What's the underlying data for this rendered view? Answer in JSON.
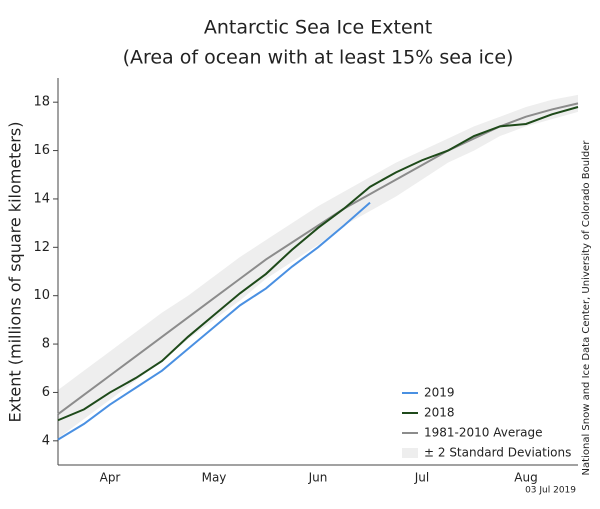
{
  "chart_data": {
    "type": "line",
    "title": "Antarctic Sea Ice Extent",
    "subtitle": "(Area of ocean with at least 15% sea ice)",
    "y_label": "Extent (millions of square kilometers)",
    "source": "National Snow and Ice Data Center, University of Colorado Boulder",
    "date": "03 Jul 2019",
    "categories": [
      null,
      null,
      "Apr",
      null,
      null,
      null,
      "May",
      null,
      null,
      null,
      "Jun",
      null,
      null,
      null,
      "Jul",
      null,
      null,
      null,
      "Aug",
      null,
      null
    ],
    "ylim": [
      3,
      19
    ],
    "yticks": [
      4,
      6,
      8,
      10,
      12,
      14,
      16,
      18
    ],
    "legend": "lower right",
    "series": [
      {
        "name": "2019",
        "color": "#4a90e2",
        "values": [
          4.05,
          4.7,
          5.5,
          6.2,
          6.9,
          7.8,
          8.7,
          9.6,
          10.3,
          11.2,
          12.0,
          12.9,
          13.85,
          null,
          null,
          null,
          null,
          null,
          null,
          null,
          null
        ]
      },
      {
        "name": "2018",
        "color": "#1e4a1a",
        "values": [
          4.85,
          5.3,
          6.0,
          6.6,
          7.3,
          8.3,
          9.2,
          10.1,
          10.9,
          11.9,
          12.8,
          13.6,
          14.5,
          15.1,
          15.6,
          16.0,
          16.6,
          17.0,
          17.1,
          17.5,
          17.8
        ]
      },
      {
        "name": "1981-2010 Average",
        "color": "#8c8c8c",
        "values": [
          5.1,
          5.9,
          6.7,
          7.5,
          8.3,
          9.1,
          9.9,
          10.7,
          11.5,
          12.2,
          12.9,
          13.6,
          14.2,
          14.8,
          15.4,
          16.0,
          16.5,
          17.0,
          17.4,
          17.7,
          17.95
        ]
      },
      {
        "name": "± 2 Standard Deviations",
        "color": "#eeeeee",
        "band": true,
        "values": [
          6.1,
          6.9,
          7.7,
          8.5,
          9.3,
          10.0,
          10.8,
          11.6,
          12.3,
          13.0,
          13.7,
          14.3,
          14.9,
          15.5,
          16.0,
          16.5,
          17.0,
          17.4,
          17.8,
          18.1,
          18.3
        ],
        "lower": [
          4.1,
          4.9,
          5.7,
          6.5,
          7.3,
          8.2,
          9.0,
          9.8,
          10.7,
          11.4,
          12.1,
          12.9,
          13.5,
          14.1,
          14.8,
          15.5,
          16.0,
          16.6,
          17.0,
          17.3,
          17.6
        ]
      }
    ]
  }
}
